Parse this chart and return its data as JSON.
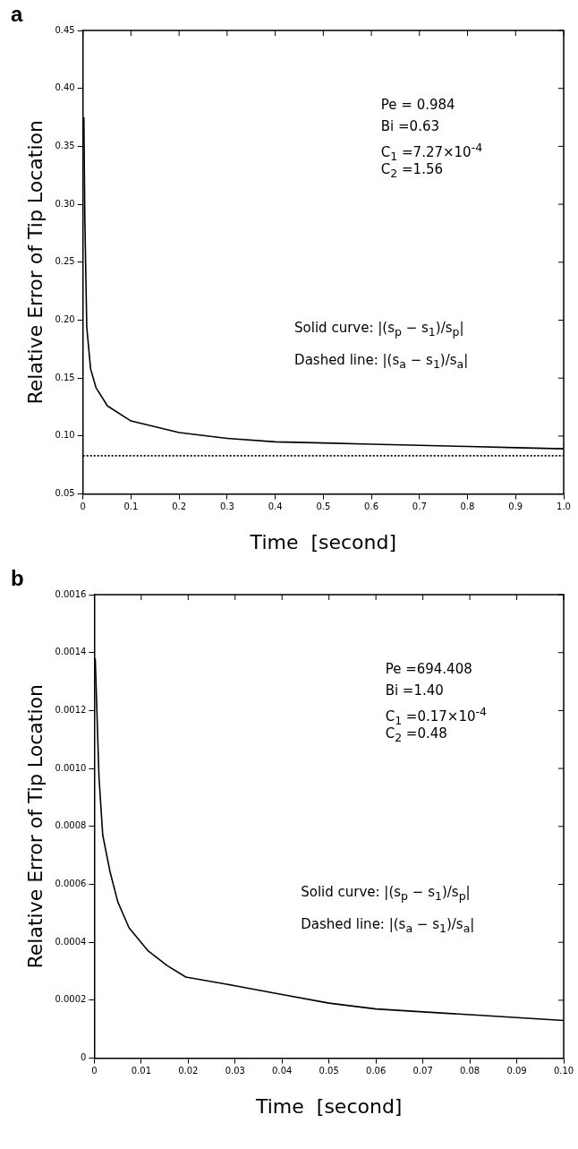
{
  "chart_data": [
    {
      "type": "line",
      "title": "a",
      "xlabel": "Time  [second]",
      "ylabel": "Relative Error of Tip Location",
      "xlim": [
        0,
        1.0
      ],
      "xticks": [
        0,
        0.1,
        0.2,
        0.3,
        0.4,
        0.5,
        0.6,
        0.7,
        0.8,
        0.9,
        {
          "value": 1.0,
          "label": "1.0"
        }
      ],
      "ylim": [
        0.05,
        0.45
      ],
      "yticks": [
        0.05,
        {
          "value": 0.1,
          "label": "0.10"
        },
        0.15,
        {
          "value": 0.2,
          "label": "0.20"
        },
        0.25,
        {
          "value": 0.3,
          "label": "0.30"
        },
        0.35,
        {
          "value": 0.4,
          "label": "0.40"
        },
        0.45
      ],
      "grid": false,
      "legend": false,
      "marker": "none",
      "series": [
        {
          "color": "#000000",
          "line_style": "solid",
          "x": [
            0.002,
            0.004,
            0.008,
            0.016,
            0.027,
            0.051,
            0.1,
            0.2,
            0.3,
            0.4,
            0.5,
            0.6,
            0.7,
            0.8,
            0.9,
            1.0
          ],
          "values": [
            0.375,
            0.288,
            0.194,
            0.158,
            0.142,
            0.126,
            0.113,
            0.103,
            0.098,
            0.095,
            0.094,
            0.093,
            0.092,
            0.091,
            0.09,
            0.089
          ]
        },
        {
          "color": "#000000",
          "line_style": "dotted",
          "x": [
            0,
            1.0
          ],
          "values": [
            0.083,
            0.083
          ]
        }
      ],
      "annotations": [
        "Pe =  0.984",
        "Bi =0.63",
        "C$_{1}$ =7.27×10$^{-4}$",
        "C$_{2}$ =1.56",
        "Solid curve: |(s$_{p}$ − s$_{1}$)/s$_{p}$|",
        "Dashed line: |(s$_{a}$ − s$_{1}$)/s$_{a}$|"
      ]
    },
    {
      "type": "line",
      "title": "b",
      "xlabel": "Time  [second]",
      "ylabel": "Relative Error of Tip Location",
      "xlim": [
        0,
        0.1
      ],
      "xticks": [
        0,
        0.01,
        0.02,
        0.03,
        0.04,
        0.05,
        0.06,
        0.07,
        0.08,
        0.09,
        {
          "value": 0.1,
          "label": "0.10"
        }
      ],
      "ylim": [
        0,
        0.0016
      ],
      "yticks": [
        0,
        0.0002,
        0.0004,
        0.0006,
        0.0008,
        {
          "value": 0.001,
          "label": "0.0010"
        },
        0.0012,
        0.0014,
        0.0016
      ],
      "grid": false,
      "legend": false,
      "marker": "none",
      "series": [
        {
          "color": "#000000",
          "line_style": "solid",
          "x": [
            0.0002,
            0.001,
            0.0018,
            0.0034,
            0.005,
            0.0074,
            0.0115,
            0.0155,
            0.0195,
            0.03,
            0.04,
            0.05,
            0.06,
            0.07,
            0.08,
            0.09,
            0.1
          ],
          "values": [
            0.00138,
            0.00097,
            0.00077,
            0.00064,
            0.00054,
            0.00045,
            0.00037,
            0.00032,
            0.00028,
            0.00025,
            0.00022,
            0.00019,
            0.00017,
            0.00016,
            0.00015,
            0.00014,
            0.00013
          ]
        }
      ],
      "annotations": [
        "Pe =694.408",
        "Bi =1.40",
        "C$_{1}$ =0.17×10$^{-4}$",
        "C$_{2}$ =0.48",
        "Solid curve: |(s$_{p}$ − s$_{1}$)/s$_{p}$|",
        "Dashed line: |(s$_{a}$ − s$_{1}$)/s$_{a}$|"
      ]
    }
  ]
}
